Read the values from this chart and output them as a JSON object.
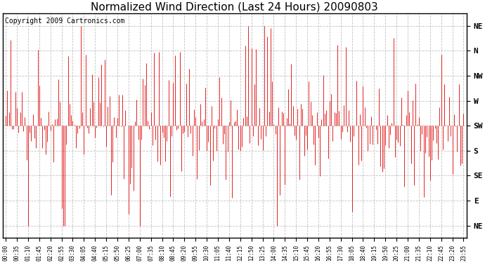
{
  "title": "Normalized Wind Direction (Last 24 Hours) 20090803",
  "copyright_text": "Copyright 2009 Cartronics.com",
  "ytick_labels": [
    "NE",
    "N",
    "NW",
    "W",
    "SW",
    "S",
    "SE",
    "E",
    "NE"
  ],
  "ytick_values": [
    8,
    7,
    6,
    5,
    4,
    3,
    2,
    1,
    0
  ],
  "ylim": [
    -0.5,
    8.5
  ],
  "line_color": "#dd0000",
  "background_color": "#ffffff",
  "plot_bg_color": "#ffffff",
  "grid_color": "#bbbbbb",
  "grid_style": "--",
  "title_fontsize": 11,
  "copyright_fontsize": 7,
  "xtick_fontsize": 5.5,
  "ytick_fontsize": 8,
  "random_seed": 42,
  "base_value": 4.0,
  "tick_every": 7
}
